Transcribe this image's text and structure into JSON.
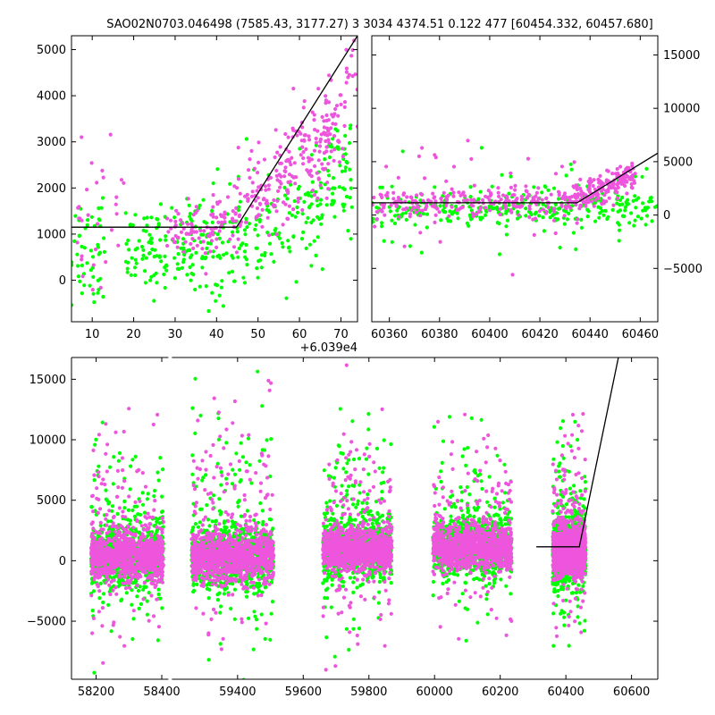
{
  "title": "SAO02N0703.046498 (7585.43, 3177.27)   3 3034 4374.51 0.122 477 [60454.332, 60457.680]",
  "colors": {
    "series_a": "#00ff00",
    "series_b": "#ee55dd",
    "model": "#000000"
  },
  "chart_data": [
    {
      "type": "scatter",
      "panel": "top-left",
      "xlim": [
        60395,
        60464
      ],
      "ylim": [
        -900,
        5300
      ],
      "x_offset_label": "+6.039e4",
      "x_ticks": [
        60400,
        60410,
        60420,
        60430,
        60440,
        60450,
        60460
      ],
      "x_tick_labels": [
        "10",
        "20",
        "30",
        "40",
        "50",
        "60",
        "70"
      ],
      "y_ticks": [
        0,
        1000,
        2000,
        3000,
        4000,
        5000
      ],
      "y_tick_labels": [
        "0",
        "1000",
        "2000",
        "3000",
        "4000",
        "5000"
      ],
      "y_tick_side": "left",
      "model_line": {
        "x": [
          60395,
          60434.8,
          60464
        ],
        "y": [
          1150,
          1150,
          5300
        ]
      },
      "series": [
        {
          "color_key": "series_a",
          "clusters": [
            {
              "x": [
                60395,
                60403
              ],
              "y": [
                600,
                900
              ],
              "sy": 700,
              "n": 50
            },
            {
              "x": [
                60408,
                60428
              ],
              "y": [
                500,
                900
              ],
              "sy": 450,
              "n": 140
            },
            {
              "x": [
                60428,
                60438
              ],
              "y": [
                400,
                1100
              ],
              "sy": 700,
              "n": 70
            },
            {
              "x": [
                60439,
                60452
              ],
              "y": [
                900,
                1400
              ],
              "sy": 550,
              "n": 70
            },
            {
              "x": [
                60452,
                60463
              ],
              "y": [
                1300,
                2500
              ],
              "sy": 600,
              "n": 90
            }
          ]
        },
        {
          "color_key": "series_b",
          "clusters": [
            {
              "x": [
                60395,
                60408
              ],
              "y": [
                1100,
                1500
              ],
              "sy": 800,
              "n": 30
            },
            {
              "x": [
                60418,
                60434
              ],
              "y": [
                900,
                1300
              ],
              "sy": 350,
              "n": 90
            },
            {
              "x": [
                60434,
                60446
              ],
              "y": [
                1400,
                2300
              ],
              "sy": 450,
              "n": 90
            },
            {
              "x": [
                60446,
                60460
              ],
              "y": [
                2200,
                3400
              ],
              "sy": 550,
              "n": 150
            },
            {
              "x": [
                60460,
                60464
              ],
              "y": [
                3500,
                4800
              ],
              "sy": 700,
              "n": 20
            }
          ]
        }
      ]
    },
    {
      "type": "scatter",
      "panel": "top-right",
      "xlim": [
        60353,
        60467
      ],
      "ylim": [
        -10000,
        16800
      ],
      "x_ticks": [
        60360,
        60380,
        60400,
        60420,
        60440,
        60460
      ],
      "x_tick_labels": [
        "60360",
        "60380",
        "60400",
        "60420",
        "60440",
        "60460"
      ],
      "y_ticks": [
        -5000,
        0,
        5000,
        10000,
        15000
      ],
      "y_tick_labels": [
        "−5000",
        "0",
        "5000",
        "10000",
        "15000"
      ],
      "y_tick_side": "right",
      "model_line": {
        "x": [
          60353,
          60434.8,
          60467
        ],
        "y": [
          1150,
          1150,
          5800
        ]
      },
      "series": [
        {
          "color_key": "series_a",
          "clusters": [
            {
              "x": [
                60353,
                60467
              ],
              "y": [
                400,
                700
              ],
              "sy": 800,
              "n": 260
            },
            {
              "x": [
                60353,
                60467
              ],
              "y": [
                400,
                700
              ],
              "sy": 2600,
              "n": 60
            }
          ]
        },
        {
          "color_key": "series_b",
          "clusters": [
            {
              "x": [
                60353,
                60434
              ],
              "y": [
                1000,
                1300
              ],
              "sy": 600,
              "n": 220
            },
            {
              "x": [
                60353,
                60434
              ],
              "y": [
                1000,
                1300
              ],
              "sy": 2600,
              "n": 40
            },
            {
              "x": [
                60434,
                60458
              ],
              "y": [
                1500,
                3800
              ],
              "sy": 700,
              "n": 170
            }
          ]
        }
      ]
    },
    {
      "type": "scatter",
      "panel": "bottom",
      "xlim": [
        58125,
        60680
      ],
      "ylim": [
        -9800,
        16800
      ],
      "x_ticks": [
        58200,
        58400,
        59400,
        59600,
        59800,
        60000,
        60200,
        60400,
        60600
      ],
      "x_tick_labels": [
        "58200",
        "58400",
        "59400",
        "59600",
        "59800",
        "60000",
        "60200",
        "60400",
        "60600"
      ],
      "y_ticks": [
        -5000,
        0,
        5000,
        10000,
        15000
      ],
      "y_tick_labels": [
        "−5000",
        "0",
        "5000",
        "10000",
        "15000"
      ],
      "y_tick_side": "left",
      "axis_break": {
        "from": 58420,
        "to": 59200
      },
      "model_line": {
        "x": [
          60310,
          60441,
          60560
        ],
        "y": [
          1150,
          1150,
          16800
        ]
      },
      "seasons": [
        {
          "x": [
            58185,
            58405
          ],
          "y": 400,
          "spread": 1200,
          "wide_spread": 4800
        },
        {
          "x": [
            59260,
            59510
          ],
          "y": 300,
          "spread": 1200,
          "wide_spread": 5500
        },
        {
          "x": [
            59660,
            59870
          ],
          "y": 900,
          "spread": 1100,
          "wide_spread": 4800
        },
        {
          "x": [
            59995,
            60235
          ],
          "y": 1100,
          "spread": 1100,
          "wide_spread": 4200
        },
        {
          "x": [
            60360,
            60460
          ],
          "y": 800,
          "spread": 1300,
          "wide_spread": 4500
        }
      ],
      "series": [
        {
          "color_key": "series_a"
        },
        {
          "color_key": "series_b"
        }
      ]
    }
  ]
}
